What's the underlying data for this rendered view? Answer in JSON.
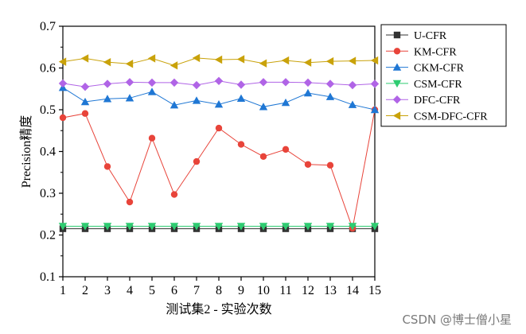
{
  "chart_data": {
    "type": "line",
    "xlabel": "测试集2 - 实验次数",
    "ylabel": "Precision精度",
    "x": [
      1,
      2,
      3,
      4,
      5,
      6,
      7,
      8,
      9,
      10,
      11,
      12,
      13,
      14,
      15
    ],
    "xlim": [
      1,
      15
    ],
    "ylim": [
      0.1,
      0.7
    ],
    "yticks": [
      0.1,
      0.2,
      0.3,
      0.4,
      0.5,
      0.6,
      0.7
    ],
    "yticklabels": [
      "0.1",
      "0.2",
      "0.3",
      "0.4",
      "0.5",
      "0.6",
      "0.7"
    ],
    "xticklabels": [
      "1",
      "2",
      "3",
      "4",
      "5",
      "6",
      "7",
      "8",
      "9",
      "10",
      "11",
      "12",
      "13",
      "14",
      "15"
    ],
    "grid": false,
    "legend": "right-outside-top",
    "series": [
      {
        "name": "U-CFR",
        "marker": "square",
        "color": "#333333",
        "values": [
          0.215,
          0.215,
          0.215,
          0.215,
          0.215,
          0.215,
          0.215,
          0.215,
          0.215,
          0.215,
          0.215,
          0.215,
          0.215,
          0.215,
          0.215
        ]
      },
      {
        "name": "KM-CFR",
        "marker": "circle",
        "color": "#e8443a",
        "values": [
          0.481,
          0.491,
          0.364,
          0.279,
          0.432,
          0.297,
          0.376,
          0.456,
          0.417,
          0.388,
          0.405,
          0.369,
          0.367,
          0.216,
          0.5
        ]
      },
      {
        "name": "CKM-CFR",
        "marker": "triangle-up",
        "color": "#1f77d4",
        "values": [
          0.553,
          0.519,
          0.526,
          0.528,
          0.543,
          0.511,
          0.522,
          0.513,
          0.527,
          0.507,
          0.517,
          0.54,
          0.531,
          0.512,
          0.5
        ]
      },
      {
        "name": "CSM-CFR",
        "marker": "triangle-down",
        "color": "#2ecc71",
        "values": [
          0.221,
          0.221,
          0.221,
          0.221,
          0.221,
          0.221,
          0.221,
          0.221,
          0.221,
          0.221,
          0.221,
          0.221,
          0.221,
          0.221,
          0.221
        ]
      },
      {
        "name": "DFC-CFR",
        "marker": "diamond",
        "color": "#b064e6",
        "values": [
          0.563,
          0.555,
          0.562,
          0.566,
          0.565,
          0.565,
          0.559,
          0.569,
          0.56,
          0.566,
          0.566,
          0.565,
          0.562,
          0.559,
          0.562
        ]
      },
      {
        "name": "CSM-DFC-CFR",
        "marker": "triangle-left",
        "color": "#c9a20a",
        "values": [
          0.615,
          0.623,
          0.614,
          0.61,
          0.623,
          0.606,
          0.624,
          0.62,
          0.621,
          0.611,
          0.618,
          0.613,
          0.616,
          0.617,
          0.618
        ]
      }
    ]
  },
  "watermark": "CSDN @博士僧小星"
}
